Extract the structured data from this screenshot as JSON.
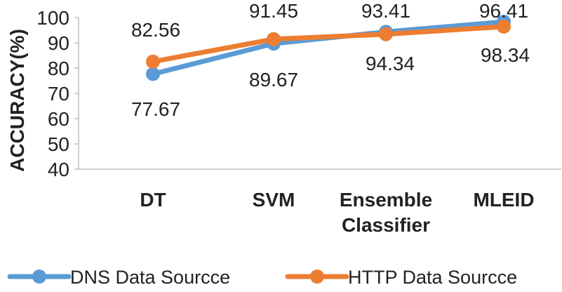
{
  "chart_data": {
    "type": "line",
    "title": "",
    "xlabel": "",
    "ylabel": "ACCURACY(%)",
    "ylim": [
      40,
      100
    ],
    "yticks": [
      40,
      50,
      60,
      70,
      80,
      90,
      100
    ],
    "grid": false,
    "legend": "bottom",
    "categories": [
      "DT",
      "SVM",
      "Ensemble Classifier",
      "MLEID"
    ],
    "series": [
      {
        "name": "DNS Data Sourcce",
        "color": "#5b9bd5",
        "values": [
          77.67,
          89.67,
          94.34,
          98.34
        ],
        "labels": [
          "77.67",
          "89.67",
          "94.34",
          "98.34"
        ]
      },
      {
        "name": "HTTP Data Sourcce",
        "color": "#ed7d31",
        "values": [
          82.56,
          91.45,
          93.41,
          96.41
        ],
        "labels": [
          "82.56",
          "91.45",
          "93.41",
          "96.41"
        ]
      }
    ]
  }
}
